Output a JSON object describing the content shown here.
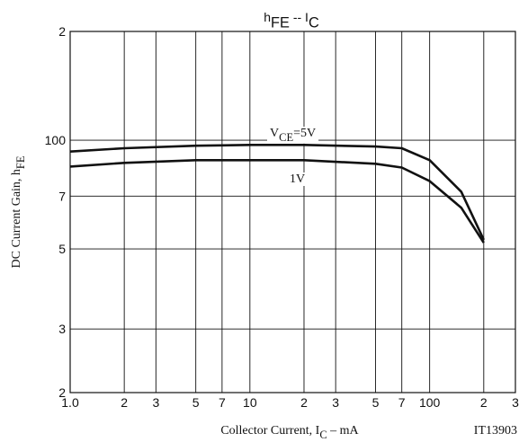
{
  "chart_data": {
    "type": "line",
    "title_parts": [
      {
        "text": "h"
      },
      {
        "text": "FE",
        "sub": true
      },
      {
        "text": " -- I"
      },
      {
        "text": "C",
        "sub": true
      }
    ],
    "ylabel_parts": [
      {
        "text": "DC Current Gain, h"
      },
      {
        "text": "FE",
        "sub": true
      }
    ],
    "xlabel_parts": [
      {
        "text": "Collector Current, I"
      },
      {
        "text": "C",
        "sub": true
      },
      {
        "text": " – mA"
      }
    ],
    "note": "IT13903",
    "xscale": "log",
    "yscale": "log",
    "grid": true,
    "xlim": [
      1,
      300
    ],
    "ylim": [
      20,
      200
    ],
    "xticks": [
      {
        "value": 1,
        "label": "1.0"
      },
      2,
      3,
      5,
      7,
      10,
      {
        "value": 20,
        "label": "2"
      },
      {
        "value": 30,
        "label": "3"
      },
      {
        "value": 50,
        "label": "5"
      },
      {
        "value": 70,
        "label": "7"
      },
      100,
      {
        "value": 200,
        "label": "2"
      },
      {
        "value": 300,
        "label": "3"
      }
    ],
    "yticks": [
      {
        "value": 20,
        "label": "2"
      },
      {
        "value": 30,
        "label": "3"
      },
      {
        "value": 50,
        "label": "5"
      },
      {
        "value": 70,
        "label": "7"
      },
      100,
      {
        "value": 200,
        "label": "2"
      }
    ],
    "x": [
      1,
      2,
      5,
      10,
      20,
      50,
      70,
      100,
      150,
      200
    ],
    "series": [
      {
        "label": [
          {
            "text": "V"
          },
          {
            "text": "CE",
            "sub": true
          },
          {
            "text": "=5V"
          }
        ],
        "color": "#111111",
        "values": [
          93,
          95,
          96.5,
          97,
          97,
          96,
          95,
          88,
          72,
          53
        ]
      },
      {
        "label": [
          {
            "text": "1V"
          }
        ],
        "color": "#111111",
        "values": [
          84.5,
          86.5,
          88,
          88,
          88,
          86,
          84,
          77,
          65,
          52
        ]
      }
    ]
  }
}
